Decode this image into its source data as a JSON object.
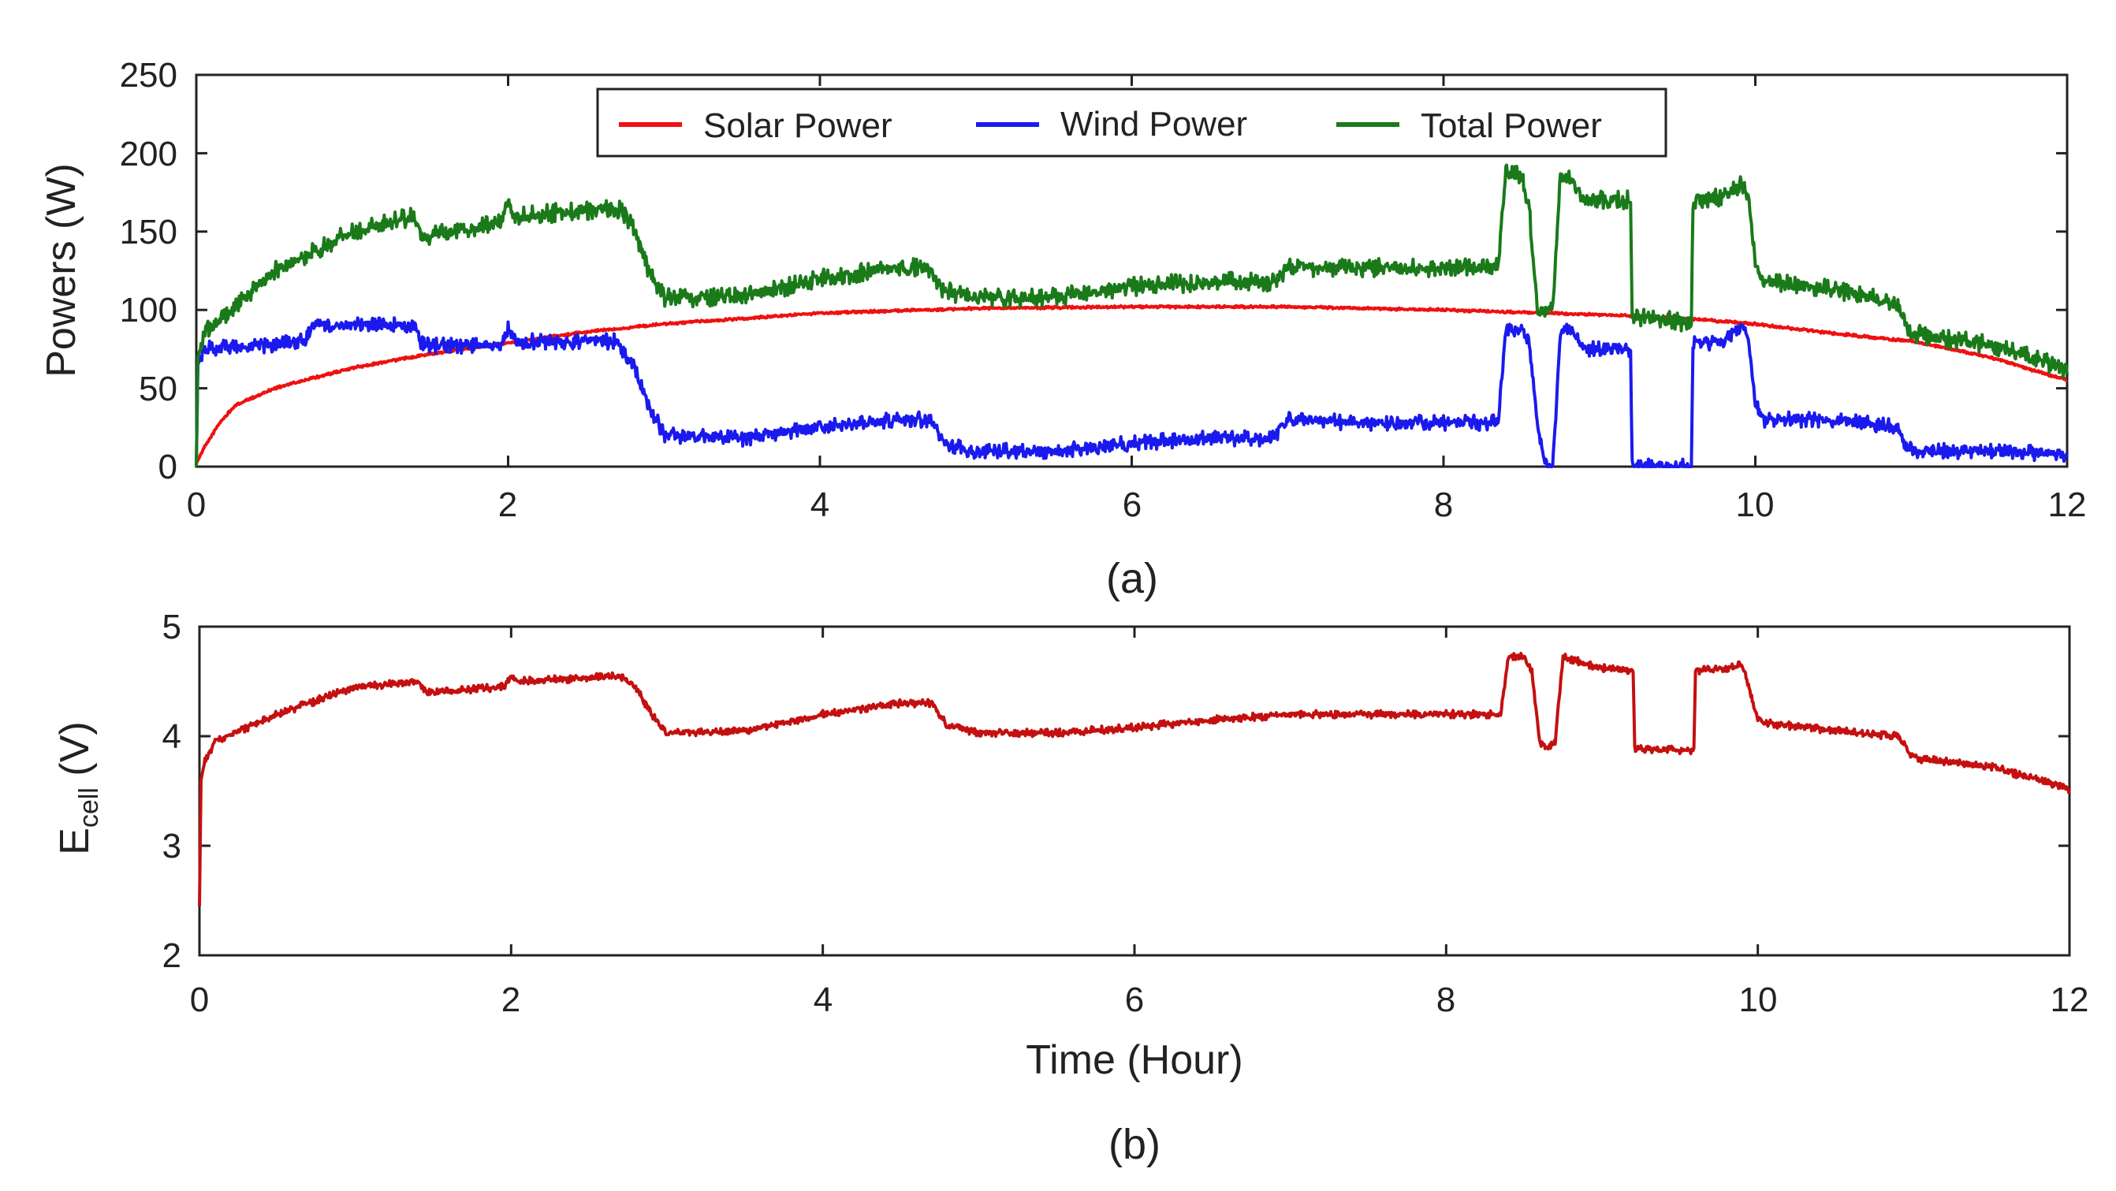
{
  "chart_data": [
    {
      "type": "line",
      "panel": "a",
      "caption": "(a)",
      "ylabel": "Powers (W)",
      "xlabel": "",
      "xlim": [
        0,
        12
      ],
      "ylim": [
        0,
        250
      ],
      "xticks": [
        "0",
        "2",
        "4",
        "6",
        "8",
        "10",
        "12"
      ],
      "yticks": [
        "0",
        "50",
        "100",
        "150",
        "200",
        "250"
      ],
      "grid": false,
      "legend_position": "top-center",
      "series": [
        {
          "name": "Solar Power",
          "color": "#ee1111",
          "noise": 0.8,
          "x": [
            0,
            0.05,
            0.15,
            0.25,
            0.5,
            1.0,
            1.5,
            2.0,
            2.5,
            3.0,
            4.0,
            5.0,
            6.0,
            7.0,
            8.0,
            9.0,
            9.5,
            10.0,
            10.5,
            11.0,
            11.5,
            12.0
          ],
          "y": [
            2,
            12,
            28,
            39,
            50,
            63,
            72,
            79,
            86,
            91,
            98,
            101,
            102,
            102,
            100,
            97,
            95,
            91,
            85,
            80,
            70,
            55
          ]
        },
        {
          "name": "Wind Power",
          "color": "#1a1aee",
          "noise": 5,
          "x": [
            0,
            0.01,
            0.05,
            0.5,
            0.7,
            0.75,
            1.4,
            1.45,
            1.5,
            1.95,
            2.0,
            2.05,
            2.7,
            2.8,
            2.9,
            3.0,
            3.5,
            4.0,
            4.5,
            4.7,
            4.8,
            5.0,
            5.5,
            6.0,
            6.5,
            6.9,
            7.0,
            7.5,
            8.0,
            8.35,
            8.4,
            8.5,
            8.55,
            8.6,
            8.65,
            8.7,
            8.75,
            8.8,
            8.9,
            9.0,
            9.2,
            9.21,
            9.59,
            9.6,
            9.8,
            9.9,
            9.95,
            10.0,
            10.05,
            10.5,
            10.9,
            11.0,
            11.5,
            12.0
          ],
          "y": [
            0,
            65,
            75,
            78,
            80,
            90,
            90,
            78,
            77,
            77,
            88,
            80,
            80,
            65,
            40,
            20,
            18,
            25,
            30,
            30,
            15,
            10,
            10,
            15,
            18,
            18,
            30,
            28,
            28,
            28,
            88,
            88,
            80,
            30,
            0,
            0,
            85,
            90,
            75,
            75,
            75,
            0,
            0,
            78,
            80,
            90,
            85,
            40,
            30,
            30,
            25,
            10,
            10,
            8
          ]
        },
        {
          "name": "Total Power",
          "color": "#1a7a1a",
          "noise": 6,
          "x": [
            0,
            0.01,
            0.05,
            0.5,
            1.0,
            1.4,
            1.45,
            1.5,
            1.95,
            2.0,
            2.05,
            2.7,
            2.8,
            2.9,
            3.0,
            3.5,
            4.0,
            4.5,
            4.7,
            4.8,
            5.0,
            5.5,
            6.0,
            6.5,
            6.9,
            7.0,
            7.5,
            8.0,
            8.35,
            8.4,
            8.5,
            8.55,
            8.6,
            8.65,
            8.7,
            8.75,
            8.8,
            8.9,
            9.0,
            9.2,
            9.21,
            9.59,
            9.6,
            9.8,
            9.9,
            9.95,
            10.0,
            10.05,
            10.5,
            10.9,
            11.0,
            11.5,
            12.0
          ],
          "y": [
            0,
            70,
            85,
            125,
            150,
            160,
            145,
            148,
            155,
            170,
            160,
            165,
            155,
            125,
            108,
            108,
            120,
            127,
            127,
            112,
            108,
            108,
            115,
            118,
            118,
            127,
            127,
            127,
            127,
            187,
            185,
            165,
            100,
            98,
            100,
            185,
            185,
            170,
            170,
            170,
            95,
            92,
            170,
            172,
            180,
            175,
            130,
            118,
            113,
            105,
            85,
            78,
            62
          ]
        }
      ]
    },
    {
      "type": "line",
      "panel": "b",
      "caption": "(b)",
      "ylabel_main": "E",
      "ylabel_sub": "cell",
      "ylabel_unit": " (V)",
      "xlabel": "Time (Hour)",
      "xlim": [
        0,
        12
      ],
      "ylim": [
        2,
        5
      ],
      "xticks": [
        "0",
        "2",
        "4",
        "6",
        "8",
        "10",
        "12"
      ],
      "yticks": [
        "2",
        "3",
        "4",
        "5"
      ],
      "grid": false,
      "series": [
        {
          "name": "Ecell",
          "color": "#c41010",
          "noise": 0.035,
          "x": [
            0,
            0.01,
            0.03,
            0.1,
            0.5,
            1.0,
            1.4,
            1.45,
            1.5,
            1.95,
            2.0,
            2.05,
            2.7,
            2.8,
            2.9,
            3.0,
            3.5,
            4.0,
            4.5,
            4.7,
            4.8,
            5.0,
            5.5,
            6.0,
            6.5,
            7.0,
            7.5,
            8.0,
            8.35,
            8.4,
            8.5,
            8.55,
            8.6,
            8.65,
            8.7,
            8.75,
            8.8,
            9.0,
            9.2,
            9.21,
            9.59,
            9.6,
            9.8,
            9.9,
            10.0,
            10.05,
            10.5,
            10.9,
            11.0,
            11.5,
            12.0
          ],
          "y": [
            2.45,
            3.6,
            3.75,
            3.95,
            4.2,
            4.45,
            4.5,
            4.4,
            4.4,
            4.45,
            4.55,
            4.5,
            4.55,
            4.45,
            4.2,
            4.03,
            4.05,
            4.2,
            4.3,
            4.3,
            4.1,
            4.03,
            4.03,
            4.08,
            4.15,
            4.2,
            4.2,
            4.2,
            4.2,
            4.73,
            4.72,
            4.6,
            3.95,
            3.9,
            3.95,
            4.73,
            4.7,
            4.62,
            4.6,
            3.88,
            3.87,
            4.6,
            4.62,
            4.65,
            4.15,
            4.12,
            4.05,
            4.0,
            3.8,
            3.72,
            3.52
          ]
        }
      ]
    }
  ]
}
